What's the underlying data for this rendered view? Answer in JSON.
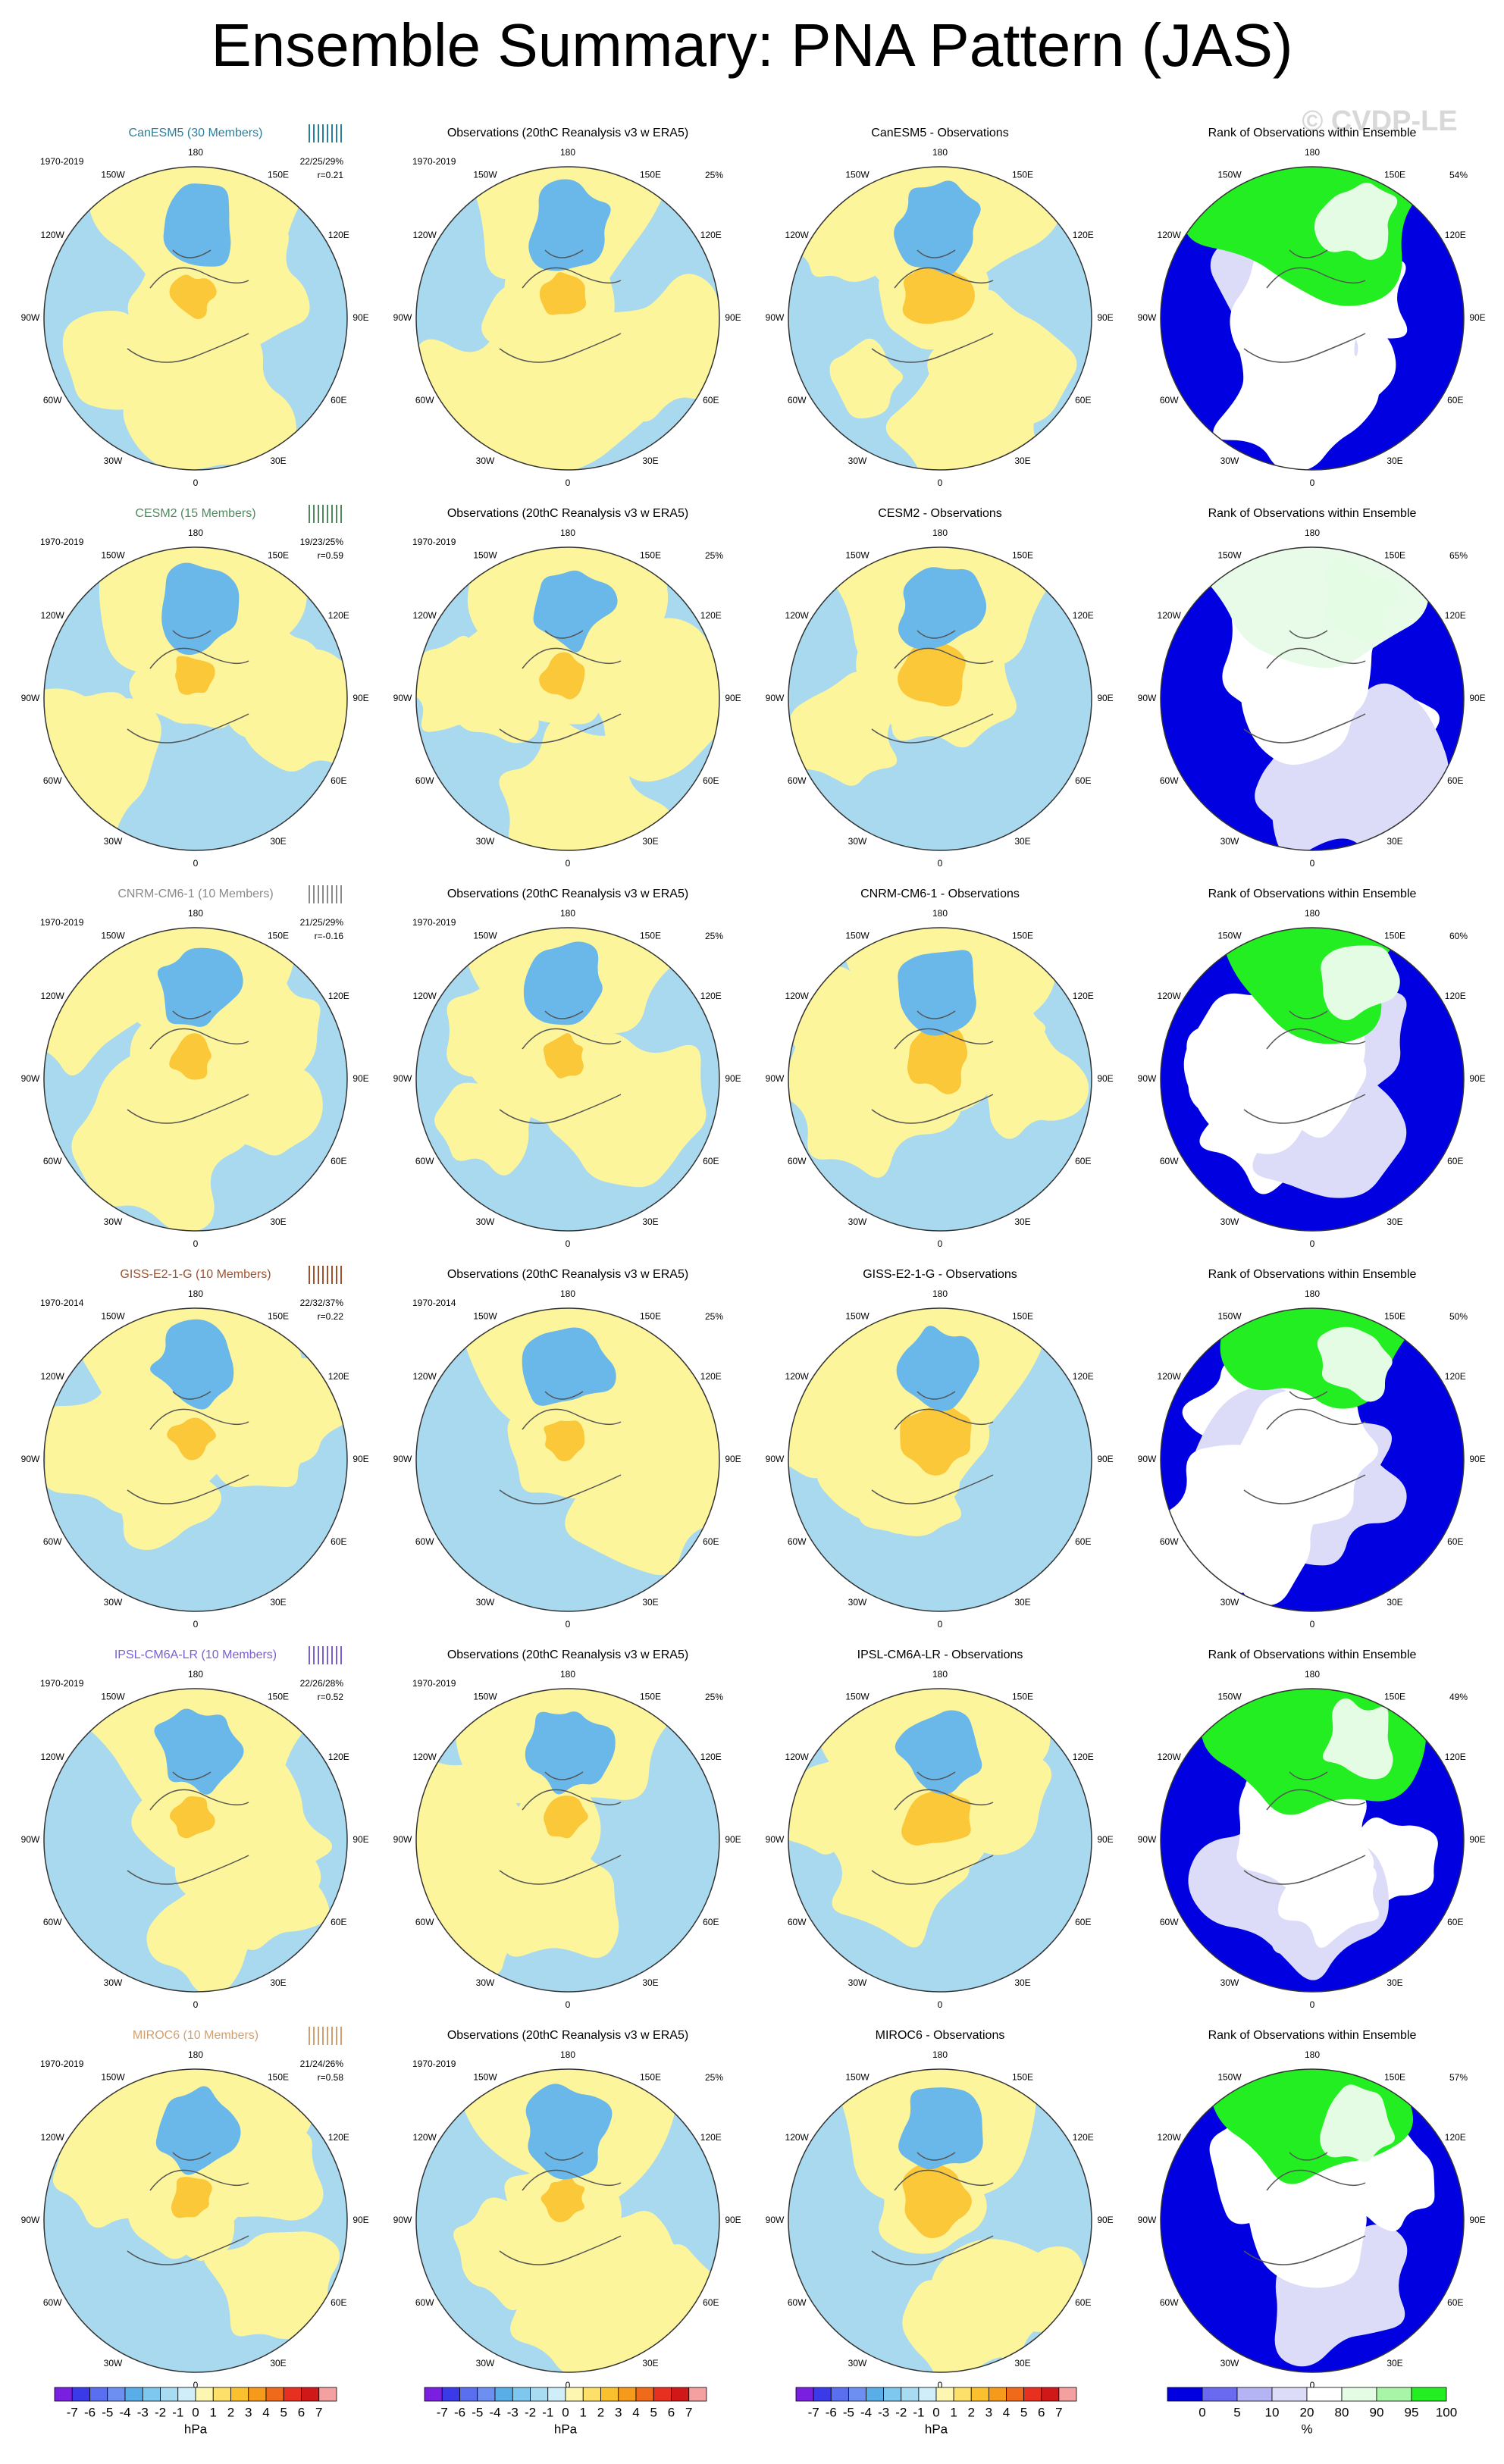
{
  "header": {
    "title": "Ensemble Summary: PNA Pattern (JAS)",
    "watermark": "© CVDP-LE"
  },
  "lon_labels": [
    "0",
    "30E",
    "60E",
    "90E",
    "120E",
    "150E",
    "180",
    "150W",
    "120W",
    "90W",
    "60W",
    "30W"
  ],
  "rows": [
    {
      "model": "CanESM5 (30 Members)",
      "color": "#2a7f9e",
      "period": "1970-2019",
      "stats": "22/25/29%",
      "r": "r=0.21",
      "obs_title": "Observations (20thC Reanalysis v3 w ERA5)",
      "obs_period": "1970-2019",
      "obs_pct": "25%",
      "diff_title": "CanESM5 - Observations",
      "rank_title": "Rank of Observations within Ensemble",
      "rank_pct": "54%"
    },
    {
      "model": "CESM2 (15 Members)",
      "color": "#4f8a5e",
      "period": "1970-2019",
      "stats": "19/23/25%",
      "r": "r=0.59",
      "obs_title": "Observations (20thC Reanalysis v3 w ERA5)",
      "obs_period": "1970-2019",
      "obs_pct": "25%",
      "diff_title": "CESM2 - Observations",
      "rank_title": "Rank of Observations within Ensemble",
      "rank_pct": "65%"
    },
    {
      "model": "CNRM-CM6-1 (10 Members)",
      "color": "#8a8a8a",
      "period": "1970-2019",
      "stats": "21/25/29%",
      "r": "r=-0.16",
      "obs_title": "Observations (20thC Reanalysis v3 w ERA5)",
      "obs_period": "1970-2019",
      "obs_pct": "25%",
      "diff_title": "CNRM-CM6-1 - Observations",
      "rank_title": "Rank of Observations within Ensemble",
      "rank_pct": "60%"
    },
    {
      "model": "GISS-E2-1-G (10 Members)",
      "color": "#a0522d",
      "period": "1970-2014",
      "stats": "22/32/37%",
      "r": "r=0.22",
      "obs_title": "Observations (20thC Reanalysis v3 w ERA5)",
      "obs_period": "1970-2014",
      "obs_pct": "25%",
      "diff_title": "GISS-E2-1-G - Observations",
      "rank_title": "Rank of Observations within Ensemble",
      "rank_pct": "50%"
    },
    {
      "model": "IPSL-CM6A-LR (10 Members)",
      "color": "#7b5fd0",
      "period": "1970-2019",
      "stats": "22/26/28%",
      "r": "r=0.52",
      "obs_title": "Observations (20thC Reanalysis v3 w ERA5)",
      "obs_period": "1970-2019",
      "obs_pct": "25%",
      "diff_title": "IPSL-CM6A-LR - Observations",
      "rank_title": "Rank of Observations within Ensemble",
      "rank_pct": "49%"
    },
    {
      "model": "MIROC6 (10 Members)",
      "color": "#d2a070",
      "period": "1970-2019",
      "stats": "21/24/26%",
      "r": "r=0.58",
      "obs_title": "Observations (20thC Reanalysis v3 w ERA5)",
      "obs_period": "1970-2019",
      "obs_pct": "25%",
      "diff_title": "MIROC6 - Observations",
      "rank_title": "Rank of Observations within Ensemble",
      "rank_pct": "57%"
    }
  ],
  "hpa_bar": {
    "ticks": [
      -7,
      -6,
      -5,
      -4,
      -3,
      -2,
      -1,
      0,
      1,
      2,
      3,
      4,
      5,
      6,
      7
    ],
    "unit": "hPa",
    "colors": [
      "#7a1fe0",
      "#3a3ae8",
      "#5a6ef0",
      "#6e8ff2",
      "#5aaee8",
      "#7ec8f0",
      "#a8dcf2",
      "#cfeefa",
      "#fdf6b0",
      "#fde06a",
      "#fbc02d",
      "#f59a1a",
      "#ef6a1a",
      "#e83020",
      "#d01818",
      "#f5a0a0"
    ]
  },
  "rank_bar": {
    "ticks": [
      0,
      5,
      10,
      20,
      80,
      90,
      95,
      100
    ],
    "unit": "%",
    "colors": [
      "#0000e0",
      "#6a6af0",
      "#b4b4f4",
      "#dcdcf8",
      "#ffffff",
      "#e4fbe4",
      "#a8f5a8",
      "#22ee22"
    ]
  }
}
